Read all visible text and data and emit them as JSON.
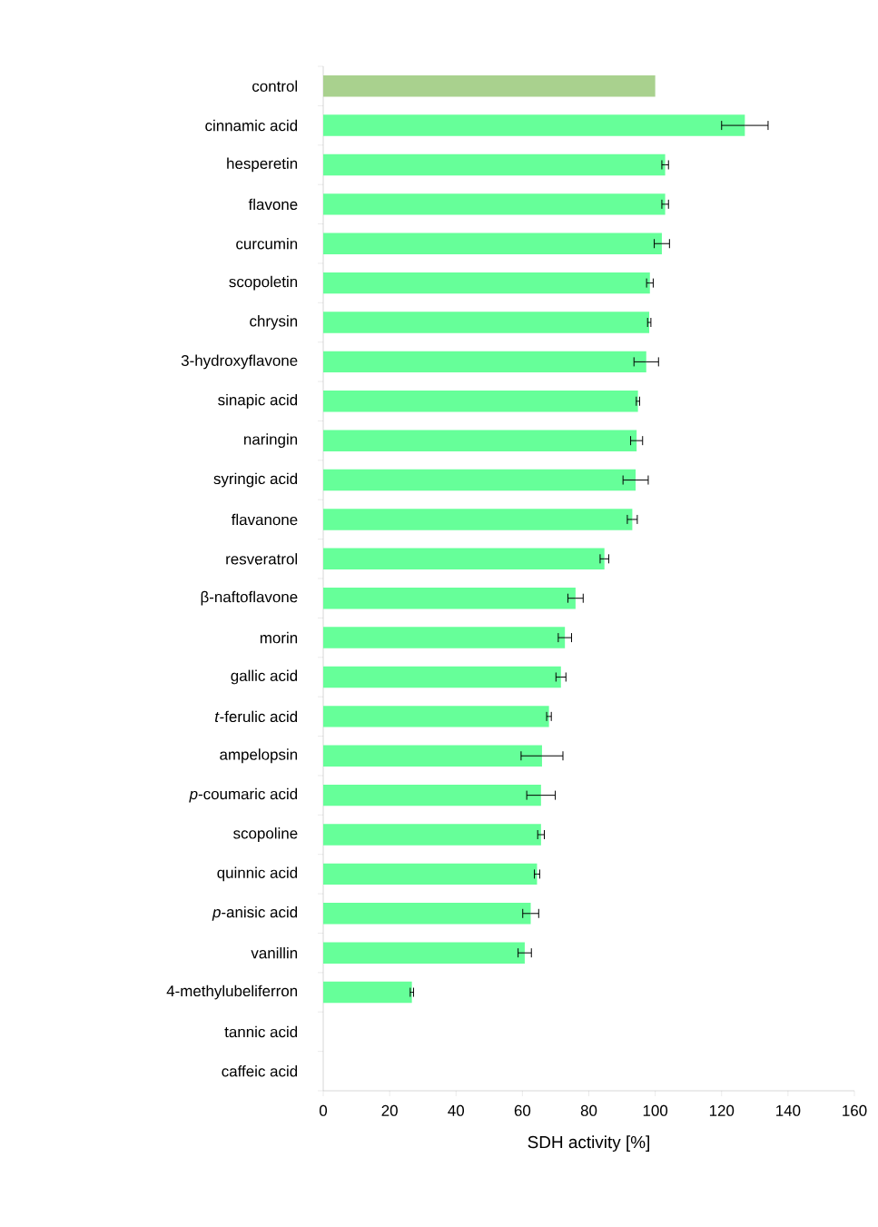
{
  "chart_data": {
    "type": "bar",
    "orientation": "horizontal",
    "xlabel": "SDH activity [%]",
    "categories": [
      "control",
      "cinnamic acid",
      "hesperetin",
      "flavone",
      "curcumin",
      "scopoletin",
      "chrysin",
      "3-hydroxyflavone",
      "sinapic acid",
      "naringin",
      "syringic acid",
      "flavanone",
      "resveratrol",
      "β-naftoflavone",
      "morin",
      "gallic acid",
      "*t*-ferulic acid",
      "ampelopsin",
      "*p*-coumaric acid",
      "scopoline",
      "quinnic acid",
      "*p*-anisic acid",
      "vanillin",
      "4-methylubeliferron",
      "tannic acid",
      "caffeic acid"
    ],
    "values": [
      100,
      127,
      103,
      103,
      102,
      98.4,
      98.2,
      97.3,
      94.8,
      94.4,
      94.1,
      93.1,
      84.7,
      76,
      72.8,
      71.6,
      68,
      65.9,
      65.6,
      65.6,
      64.4,
      62.5,
      60.7,
      26.7,
      0,
      0
    ],
    "errors": [
      null,
      7,
      1,
      1,
      2.3,
      1,
      0.5,
      3.7,
      0.5,
      1.8,
      3.8,
      1.5,
      1.3,
      2.3,
      2,
      1.5,
      0.7,
      6.3,
      4.3,
      1,
      0.8,
      2.4,
      2,
      0.5,
      null,
      null
    ],
    "colors": [
      "#a9d18e",
      "#66ff99",
      "#66ff99",
      "#66ff99",
      "#66ff99",
      "#66ff99",
      "#66ff99",
      "#66ff99",
      "#66ff99",
      "#66ff99",
      "#66ff99",
      "#66ff99",
      "#66ff99",
      "#66ff99",
      "#66ff99",
      "#66ff99",
      "#66ff99",
      "#66ff99",
      "#66ff99",
      "#66ff99",
      "#66ff99",
      "#66ff99",
      "#66ff99",
      "#66ff99",
      "#66ff99",
      "#66ff99"
    ],
    "xlim": [
      0,
      160
    ],
    "xticks": [
      0,
      20,
      40,
      60,
      80,
      100,
      120,
      140,
      160
    ],
    "grid": false
  }
}
